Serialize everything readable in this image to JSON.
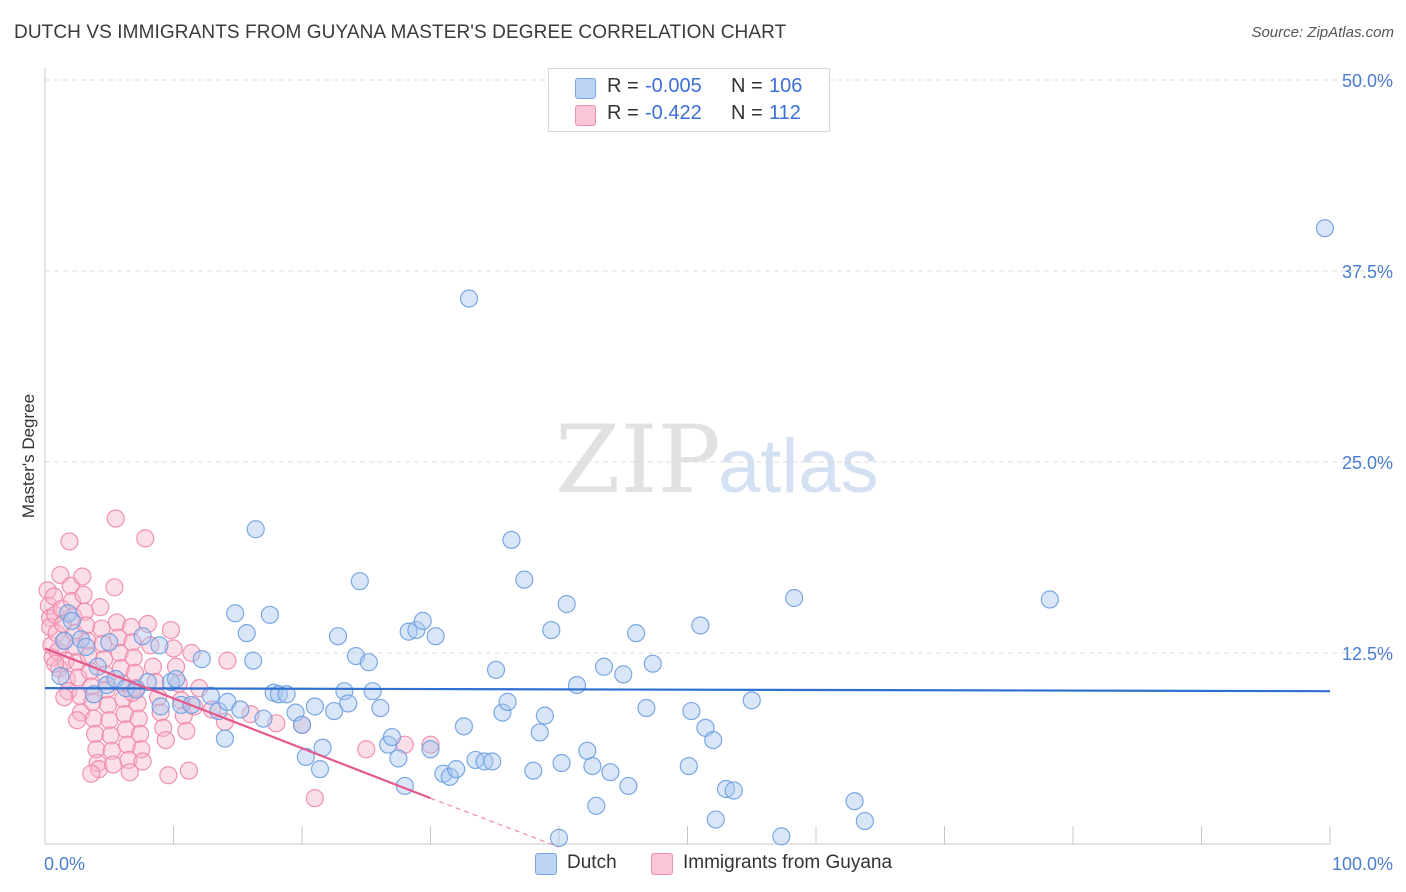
{
  "title": "DUTCH VS IMMIGRANTS FROM GUYANA MASTER'S DEGREE CORRELATION CHART",
  "source": "Source: ZipAtlas.com",
  "watermark": {
    "zip": "ZIP",
    "atlas": "atlas"
  },
  "colors": {
    "dutch_fill": "#a9c8f0",
    "dutch_stroke": "#6e9ee0",
    "dutch_line": "#2f6fd0",
    "guyana_fill": "#f7b8cc",
    "guyana_stroke": "#ee86a8",
    "guyana_line": "#e45a8c",
    "grid": "#dcdcdc",
    "axis_text": "#4a7ccf"
  },
  "legend": {
    "rows": [
      {
        "r_label": "R =",
        "r_value": "-0.005",
        "n_label": "N =",
        "n_value": "106"
      },
      {
        "r_label": "R =",
        "r_value": "-0.422",
        "n_label": "N =",
        "n_value": "112"
      }
    ]
  },
  "bottom_legend": {
    "dutch": "Dutch",
    "guyana": "Immigrants from Guyana"
  },
  "chart_data": {
    "type": "scatter",
    "title": "DUTCH VS IMMIGRANTS FROM GUYANA MASTER'S DEGREE CORRELATION CHART",
    "xlabel": "",
    "ylabel": "Master's Degree",
    "xlim": [
      0,
      100
    ],
    "ylim": [
      0,
      50
    ],
    "x_tick_labels": [
      {
        "value": 0,
        "label": "0.0%"
      },
      {
        "value": 100,
        "label": "100.0%"
      }
    ],
    "y_tick_labels": [
      {
        "value": 12.5,
        "label": "12.5%"
      },
      {
        "value": 25,
        "label": "25.0%"
      },
      {
        "value": 37.5,
        "label": "37.5%"
      },
      {
        "value": 50,
        "label": "50.0%"
      }
    ],
    "series": [
      {
        "name": "Dutch",
        "R": -0.005,
        "N": 106,
        "trend": {
          "x0": 0,
          "y0": 10.2,
          "x1": 100,
          "y1": 10.0
        },
        "points": [
          [
            1.8,
            15.1
          ],
          [
            1.5,
            13.3
          ],
          [
            2.1,
            14.6
          ],
          [
            2.8,
            13.4
          ],
          [
            3.2,
            12.9
          ],
          [
            4.1,
            11.6
          ],
          [
            4.8,
            10.4
          ],
          [
            5.5,
            10.8
          ],
          [
            6.3,
            10.2
          ],
          [
            7.1,
            10.1
          ],
          [
            8.0,
            10.6
          ],
          [
            8.9,
            13.0
          ],
          [
            9.8,
            10.6
          ],
          [
            10.2,
            10.8
          ],
          [
            10.6,
            9.1
          ],
          [
            11.4,
            9.1
          ],
          [
            12.2,
            12.1
          ],
          [
            12.9,
            9.7
          ],
          [
            13.5,
            8.7
          ],
          [
            14.2,
            9.3
          ],
          [
            14.0,
            6.9
          ],
          [
            14.8,
            15.1
          ],
          [
            15.2,
            8.8
          ],
          [
            15.7,
            13.8
          ],
          [
            16.2,
            12.0
          ],
          [
            16.4,
            20.6
          ],
          [
            17.0,
            8.2
          ],
          [
            17.5,
            15.0
          ],
          [
            17.8,
            9.9
          ],
          [
            18.2,
            9.8
          ],
          [
            18.8,
            9.8
          ],
          [
            19.5,
            8.6
          ],
          [
            20.0,
            7.8
          ],
          [
            20.3,
            5.7
          ],
          [
            21.0,
            9.0
          ],
          [
            21.4,
            4.9
          ],
          [
            21.6,
            6.3
          ],
          [
            22.5,
            8.7
          ],
          [
            22.8,
            13.6
          ],
          [
            23.3,
            10.0
          ],
          [
            23.6,
            9.2
          ],
          [
            24.2,
            12.3
          ],
          [
            24.5,
            17.2
          ],
          [
            25.2,
            11.9
          ],
          [
            25.5,
            10.0
          ],
          [
            26.1,
            8.9
          ],
          [
            26.7,
            6.5
          ],
          [
            27.0,
            7.0
          ],
          [
            27.5,
            5.6
          ],
          [
            28.0,
            3.8
          ],
          [
            28.3,
            13.9
          ],
          [
            28.9,
            14.0
          ],
          [
            29.4,
            14.6
          ],
          [
            30.0,
            6.2
          ],
          [
            30.4,
            13.6
          ],
          [
            31.0,
            4.6
          ],
          [
            31.5,
            4.4
          ],
          [
            32.0,
            4.9
          ],
          [
            32.6,
            7.7
          ],
          [
            33.0,
            35.7
          ],
          [
            33.5,
            5.5
          ],
          [
            34.2,
            5.4
          ],
          [
            34.8,
            5.4
          ],
          [
            35.1,
            11.4
          ],
          [
            35.6,
            8.6
          ],
          [
            36.0,
            9.3
          ],
          [
            36.3,
            19.9
          ],
          [
            37.3,
            17.3
          ],
          [
            38.0,
            4.8
          ],
          [
            38.5,
            7.3
          ],
          [
            38.9,
            8.4
          ],
          [
            39.4,
            14.0
          ],
          [
            40.2,
            5.3
          ],
          [
            40.6,
            15.7
          ],
          [
            41.4,
            10.4
          ],
          [
            42.2,
            6.1
          ],
          [
            42.6,
            5.1
          ],
          [
            42.9,
            2.5
          ],
          [
            43.5,
            11.6
          ],
          [
            44.0,
            4.7
          ],
          [
            45.0,
            11.1
          ],
          [
            45.4,
            3.8
          ],
          [
            46.0,
            13.8
          ],
          [
            46.8,
            8.9
          ],
          [
            47.3,
            11.8
          ],
          [
            50.1,
            5.1
          ],
          [
            50.3,
            8.7
          ],
          [
            51.0,
            14.3
          ],
          [
            51.4,
            7.6
          ],
          [
            52.0,
            6.8
          ],
          [
            52.2,
            1.6
          ],
          [
            53.0,
            3.6
          ],
          [
            53.6,
            3.5
          ],
          [
            57.3,
            0.5
          ],
          [
            58.3,
            16.1
          ],
          [
            63.0,
            2.8
          ],
          [
            63.8,
            1.5
          ],
          [
            78.2,
            16.0
          ],
          [
            99.6,
            40.3
          ],
          [
            40.0,
            0.4
          ],
          [
            55.0,
            9.4
          ],
          [
            5.0,
            13.2
          ],
          [
            3.8,
            9.8
          ],
          [
            7.6,
            13.6
          ],
          [
            9.0,
            9.0
          ],
          [
            1.2,
            11.0
          ]
        ]
      },
      {
        "name": "Immigrants from Guyana",
        "R": -0.422,
        "N": 112,
        "trend": {
          "x0": 0,
          "y0": 12.8,
          "x1": 30,
          "y1": 3.0,
          "dash_to": {
            "x": 40,
            "y": -0.2
          }
        },
        "points": [
          [
            0.2,
            16.6
          ],
          [
            0.3,
            15.6
          ],
          [
            0.4,
            14.8
          ],
          [
            0.4,
            14.2
          ],
          [
            0.5,
            13.0
          ],
          [
            0.6,
            12.2
          ],
          [
            0.7,
            16.2
          ],
          [
            0.8,
            15.0
          ],
          [
            0.9,
            13.8
          ],
          [
            1.0,
            12.6
          ],
          [
            1.1,
            11.5
          ],
          [
            1.2,
            17.6
          ],
          [
            1.3,
            15.4
          ],
          [
            1.4,
            14.4
          ],
          [
            1.5,
            13.3
          ],
          [
            1.6,
            12.0
          ],
          [
            1.7,
            10.8
          ],
          [
            1.8,
            10.0
          ],
          [
            1.9,
            19.8
          ],
          [
            2.0,
            16.9
          ],
          [
            2.1,
            15.9
          ],
          [
            2.2,
            14.9
          ],
          [
            2.3,
            13.8
          ],
          [
            2.4,
            12.9
          ],
          [
            2.5,
            11.9
          ],
          [
            2.6,
            10.9
          ],
          [
            2.7,
            9.7
          ],
          [
            2.8,
            8.6
          ],
          [
            2.9,
            17.5
          ],
          [
            3.0,
            16.3
          ],
          [
            3.1,
            15.2
          ],
          [
            3.2,
            14.3
          ],
          [
            3.3,
            13.3
          ],
          [
            3.4,
            12.3
          ],
          [
            3.5,
            11.3
          ],
          [
            3.6,
            10.3
          ],
          [
            3.7,
            9.3
          ],
          [
            3.8,
            8.2
          ],
          [
            3.9,
            7.2
          ],
          [
            4.0,
            6.2
          ],
          [
            4.1,
            5.3
          ],
          [
            4.2,
            4.9
          ],
          [
            4.3,
            15.5
          ],
          [
            4.4,
            14.1
          ],
          [
            4.5,
            13.1
          ],
          [
            4.6,
            12.1
          ],
          [
            4.7,
            11.1
          ],
          [
            4.8,
            10.1
          ],
          [
            4.9,
            9.1
          ],
          [
            5.0,
            8.1
          ],
          [
            5.1,
            7.1
          ],
          [
            5.2,
            6.1
          ],
          [
            5.3,
            5.2
          ],
          [
            5.4,
            16.8
          ],
          [
            5.5,
            21.3
          ],
          [
            5.6,
            14.5
          ],
          [
            5.7,
            13.5
          ],
          [
            5.8,
            12.5
          ],
          [
            5.9,
            11.5
          ],
          [
            6.0,
            10.5
          ],
          [
            6.1,
            9.5
          ],
          [
            6.2,
            8.5
          ],
          [
            6.3,
            7.5
          ],
          [
            6.4,
            6.5
          ],
          [
            6.5,
            5.5
          ],
          [
            6.6,
            4.7
          ],
          [
            6.7,
            14.2
          ],
          [
            6.8,
            13.2
          ],
          [
            6.9,
            12.2
          ],
          [
            7.0,
            11.2
          ],
          [
            7.1,
            10.2
          ],
          [
            7.2,
            9.2
          ],
          [
            7.3,
            8.2
          ],
          [
            7.4,
            7.2
          ],
          [
            7.5,
            6.2
          ],
          [
            7.6,
            5.4
          ],
          [
            7.8,
            20.0
          ],
          [
            8.0,
            14.4
          ],
          [
            8.2,
            13.0
          ],
          [
            8.4,
            11.6
          ],
          [
            8.6,
            10.6
          ],
          [
            8.8,
            9.6
          ],
          [
            9.0,
            8.6
          ],
          [
            9.2,
            7.6
          ],
          [
            9.4,
            6.8
          ],
          [
            9.6,
            4.5
          ],
          [
            9.8,
            14.0
          ],
          [
            10.0,
            12.8
          ],
          [
            10.2,
            11.6
          ],
          [
            10.4,
            10.5
          ],
          [
            10.6,
            9.4
          ],
          [
            10.8,
            8.4
          ],
          [
            11.0,
            7.4
          ],
          [
            11.2,
            4.8
          ],
          [
            11.4,
            12.5
          ],
          [
            11.6,
            9.0
          ],
          [
            12.0,
            10.2
          ],
          [
            13.0,
            8.8
          ],
          [
            14.0,
            8.0
          ],
          [
            14.2,
            12.0
          ],
          [
            16.0,
            8.5
          ],
          [
            18.0,
            7.9
          ],
          [
            20.0,
            7.8
          ],
          [
            21.0,
            3.0
          ],
          [
            25.0,
            6.2
          ],
          [
            28.0,
            6.5
          ],
          [
            30.0,
            6.5
          ],
          [
            1.5,
            9.6
          ],
          [
            2.5,
            8.1
          ],
          [
            0.8,
            11.8
          ],
          [
            3.6,
            4.6
          ],
          [
            6.8,
            9.9
          ]
        ]
      }
    ]
  }
}
